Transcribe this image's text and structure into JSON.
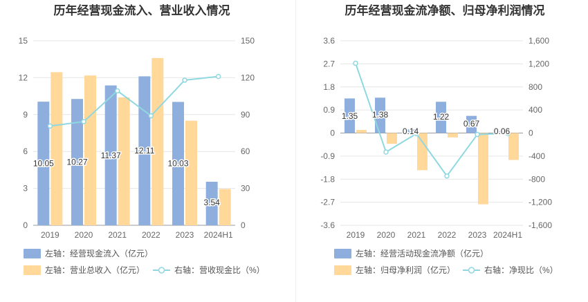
{
  "chart_data": [
    {
      "type": "bar",
      "title": "历年经营现金流入、营业收入情况",
      "categories": [
        "2019",
        "2020",
        "2021",
        "2022",
        "2023",
        "2024H1"
      ],
      "y_left": {
        "min": 0,
        "max": 15,
        "ticks": [
          "0",
          "3",
          "6",
          "9",
          "12",
          "15"
        ]
      },
      "y_right": {
        "min": 0,
        "max": 150,
        "ticks": [
          "0",
          "30",
          "60",
          "90",
          "120",
          "150"
        ]
      },
      "series": [
        {
          "name": "左轴：经营现金流入（亿元）",
          "type": "bar",
          "axis": "left",
          "color": "#8eaedd",
          "values": [
            10.05,
            10.27,
            11.37,
            12.11,
            10.03,
            3.54
          ],
          "labels": [
            "10.05",
            "10.27",
            "11.37",
            "12.11",
            "10.03",
            "3.54"
          ]
        },
        {
          "name": "左轴：营业总收入（亿元）",
          "type": "bar",
          "axis": "left",
          "color": "#ffd89a",
          "values": [
            12.45,
            12.18,
            10.4,
            13.6,
            8.5,
            2.95
          ]
        },
        {
          "name": "右轴：营收现金比（%）",
          "type": "line",
          "axis": "right",
          "color": "#8fd8e0",
          "values": [
            80.7,
            84.3,
            109.3,
            89.0,
            118.0,
            121.0
          ]
        }
      ],
      "legend_placement": "bottom-left",
      "grid": true
    },
    {
      "type": "bar",
      "title": "历年经营现金流净额、归母净利润情况",
      "categories": [
        "2019",
        "2020",
        "2021",
        "2022",
        "2023",
        "2024H1"
      ],
      "y_left": {
        "min": -3.6,
        "max": 3.6,
        "ticks": [
          "-3.6",
          "-2.7",
          "-1.8",
          "-0.9",
          "0",
          "0.9",
          "1.8",
          "2.7",
          "3.6"
        ]
      },
      "y_right": {
        "min": -1600,
        "max": 1600,
        "ticks": [
          "-1,600",
          "-1,200",
          "-800",
          "-400",
          "0",
          "400",
          "800",
          "1,200",
          "1,600"
        ]
      },
      "series": [
        {
          "name": "左轴：经营活动现金流净额（亿元）",
          "type": "bar",
          "axis": "left",
          "color": "#8eaedd",
          "values": [
            1.35,
            1.38,
            0.14,
            1.22,
            0.67,
            0.06
          ],
          "labels": [
            "1.35",
            "1.38",
            "0.14",
            "1.22",
            "0.67",
            "0.06"
          ]
        },
        {
          "name": "左轴：归母净利润（亿元）",
          "type": "bar",
          "axis": "left",
          "color": "#ffd89a",
          "values": [
            0.12,
            -0.42,
            -1.45,
            -0.17,
            -2.78,
            -1.05
          ]
        },
        {
          "name": "右轴：净现比（%）",
          "type": "line",
          "axis": "right",
          "color": "#8fd8e0",
          "values": [
            1210,
            -330,
            -10,
            -745,
            -25,
            -5
          ]
        }
      ],
      "legend_placement": "bottom-left",
      "grid": true
    }
  ]
}
